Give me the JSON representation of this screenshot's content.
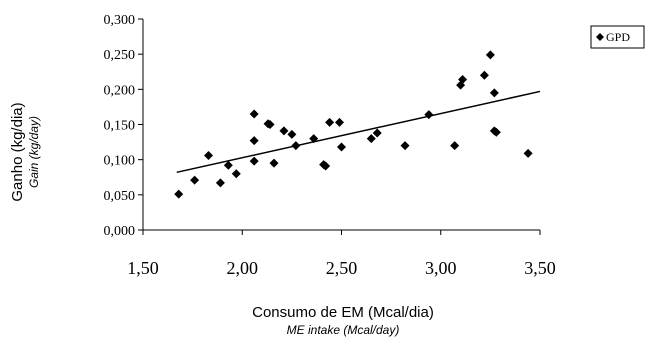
{
  "chart_data": {
    "type": "scatter",
    "xlabel": "Consumo de EM (Mcal/dia)",
    "xlabel_sub": "ME  intake (Mcal/day)",
    "ylabel": "Ganho (kg/dia)",
    "ylabel_sub": "Gain (kg/day)",
    "xlim": [
      1.5,
      3.5
    ],
    "ylim": [
      0.0,
      0.3
    ],
    "x_ticks": [
      "1,50",
      "2,00",
      "2,50",
      "3,00",
      "3,50"
    ],
    "y_ticks": [
      "0,000",
      "0,050",
      "0,100",
      "0,150",
      "0,200",
      "0,250",
      "0,300"
    ],
    "grid": false,
    "legend_position": "top-right",
    "series": [
      {
        "name": "GPD",
        "marker": "diamond",
        "color": "#000000",
        "points": [
          {
            "x": 1.68,
            "y": 0.051
          },
          {
            "x": 1.76,
            "y": 0.071
          },
          {
            "x": 1.83,
            "y": 0.106
          },
          {
            "x": 1.89,
            "y": 0.067
          },
          {
            "x": 1.93,
            "y": 0.092
          },
          {
            "x": 1.97,
            "y": 0.08
          },
          {
            "x": 2.06,
            "y": 0.165
          },
          {
            "x": 2.06,
            "y": 0.127
          },
          {
            "x": 2.06,
            "y": 0.098
          },
          {
            "x": 2.13,
            "y": 0.151
          },
          {
            "x": 2.14,
            "y": 0.15
          },
          {
            "x": 2.16,
            "y": 0.095
          },
          {
            "x": 2.21,
            "y": 0.141
          },
          {
            "x": 2.25,
            "y": 0.136
          },
          {
            "x": 2.27,
            "y": 0.12
          },
          {
            "x": 2.36,
            "y": 0.13
          },
          {
            "x": 2.41,
            "y": 0.093
          },
          {
            "x": 2.42,
            "y": 0.091
          },
          {
            "x": 2.44,
            "y": 0.153
          },
          {
            "x": 2.49,
            "y": 0.153
          },
          {
            "x": 2.5,
            "y": 0.118
          },
          {
            "x": 2.65,
            "y": 0.13
          },
          {
            "x": 2.68,
            "y": 0.138
          },
          {
            "x": 2.82,
            "y": 0.12
          },
          {
            "x": 2.94,
            "y": 0.164
          },
          {
            "x": 3.07,
            "y": 0.12
          },
          {
            "x": 3.1,
            "y": 0.206
          },
          {
            "x": 3.11,
            "y": 0.214
          },
          {
            "x": 3.22,
            "y": 0.22
          },
          {
            "x": 3.25,
            "y": 0.249
          },
          {
            "x": 3.27,
            "y": 0.195
          },
          {
            "x": 3.27,
            "y": 0.141
          },
          {
            "x": 3.28,
            "y": 0.139
          },
          {
            "x": 3.44,
            "y": 0.109
          }
        ]
      }
    ],
    "trendline": {
      "x": [
        1.67,
        3.5
      ],
      "y": [
        0.082,
        0.197
      ]
    }
  }
}
